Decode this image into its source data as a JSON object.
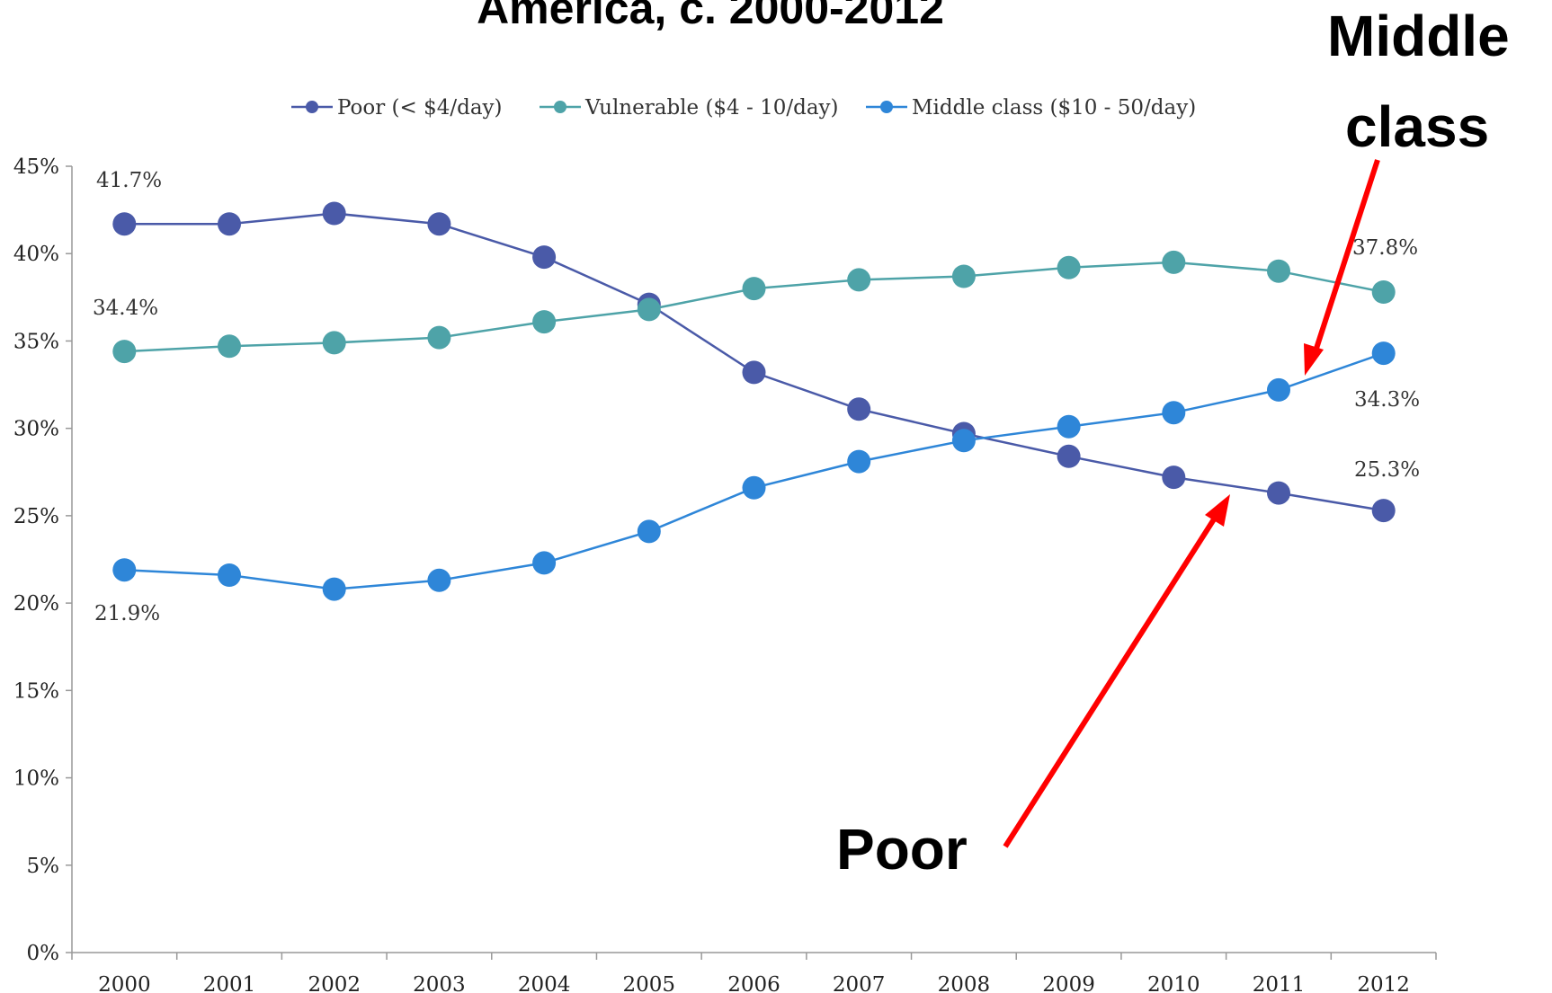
{
  "chart_data": {
    "type": "line",
    "title": "America, c. 2000-2012",
    "categories": [
      "2000",
      "2001",
      "2002",
      "2003",
      "2004",
      "2005",
      "2006",
      "2007",
      "2008",
      "2009",
      "2010",
      "2011",
      "2012"
    ],
    "ylim": [
      0,
      45
    ],
    "y_ticks": [
      "0%",
      "5%",
      "10%",
      "15%",
      "20%",
      "25%",
      "30%",
      "35%",
      "40%",
      "45%"
    ],
    "legend_position": "top",
    "series": [
      {
        "name": "Poor (< $4/day)",
        "color": "#4a5aa8",
        "values": [
          41.7,
          41.7,
          42.3,
          41.7,
          39.8,
          37.1,
          33.2,
          31.1,
          29.7,
          28.4,
          27.2,
          26.3,
          25.3
        ]
      },
      {
        "name": "Vulnerable ($4 - 10/day)",
        "color": "#4ea3a8",
        "values": [
          34.4,
          34.7,
          34.9,
          35.2,
          36.1,
          36.8,
          38.0,
          38.5,
          38.7,
          39.2,
          39.5,
          39.0,
          37.8
        ]
      },
      {
        "name": "Middle class ($10 - 50/day)",
        "color": "#2e86d8",
        "values": [
          21.9,
          21.6,
          20.8,
          21.3,
          22.3,
          24.1,
          26.6,
          28.1,
          29.3,
          30.1,
          30.9,
          32.2,
          34.3
        ]
      }
    ],
    "data_labels": [
      "41.7%",
      "34.4%",
      "21.9%",
      "37.8%",
      "34.3%",
      "25.3%"
    ],
    "grid": false
  },
  "annotations": {
    "middle_class": [
      "Middle",
      "class"
    ],
    "poor": "Poor"
  },
  "arrow_color": "#ff0000"
}
